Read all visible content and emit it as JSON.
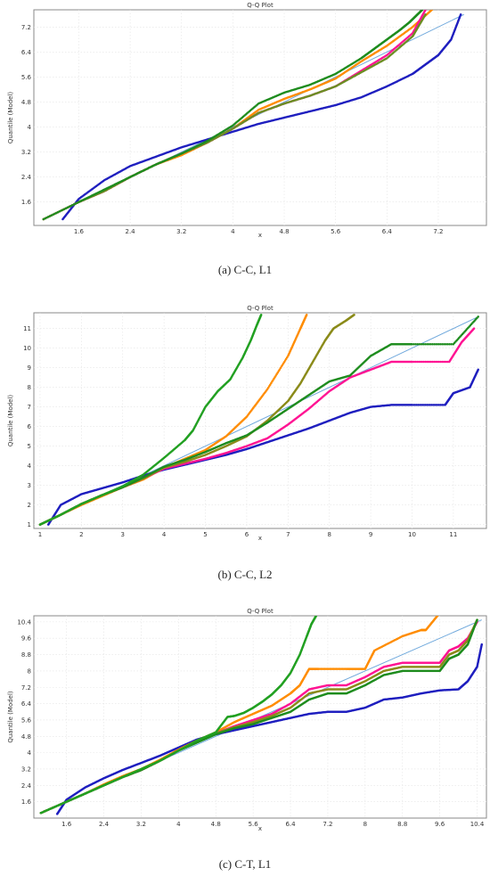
{
  "chart_data": [
    {
      "type": "scatter",
      "title": "Q-Q Plot",
      "xlabel": "x",
      "ylabel": "Quantile (Model)",
      "xlim": [
        0.9,
        7.95
      ],
      "ylim": [
        0.85,
        7.75
      ],
      "xticks": [
        1.6,
        2.4,
        3.2,
        4,
        4.8,
        5.6,
        6.4,
        7.2
      ],
      "xtick_labels": [
        "1.6",
        "2.4",
        "3.2",
        "4",
        "4.8",
        "5.6",
        "6.4",
        "7.2"
      ],
      "yticks": [
        1.6,
        2.4,
        3.2,
        4,
        4.8,
        5.6,
        6.4,
        7.2
      ],
      "ytick_labels": [
        "1.6",
        "2.4",
        "3.2",
        "4",
        "4.8",
        "5.6",
        "6.4",
        "7.2"
      ],
      "grid": true,
      "caption": "(a) C-C, L1",
      "reference_line": {
        "color": "#6fa8dc",
        "x": [
          1.05,
          7.6
        ],
        "y": [
          1.05,
          7.6
        ]
      },
      "series": [
        {
          "color": "#1f1fbf",
          "x": [
            1.35,
            1.6,
            2.0,
            2.4,
            2.8,
            3.2,
            3.6,
            4.0,
            4.4,
            4.8,
            5.2,
            5.6,
            6.0,
            6.4,
            6.8,
            7.0,
            7.2,
            7.4,
            7.55
          ],
          "y": [
            1.05,
            1.7,
            2.3,
            2.75,
            3.05,
            3.35,
            3.6,
            3.85,
            4.1,
            4.3,
            4.5,
            4.7,
            4.95,
            5.3,
            5.7,
            6.0,
            6.3,
            6.8,
            7.6
          ]
        },
        {
          "color": "#ff8c00",
          "x": [
            1.05,
            1.6,
            2.0,
            2.4,
            2.8,
            3.2,
            3.6,
            4.0,
            4.4,
            4.8,
            5.2,
            5.6,
            6.0,
            6.4,
            6.8,
            7.1
          ],
          "y": [
            1.05,
            1.6,
            1.95,
            2.4,
            2.8,
            3.1,
            3.5,
            3.95,
            4.55,
            4.9,
            5.2,
            5.55,
            6.1,
            6.6,
            7.2,
            7.75
          ]
        },
        {
          "color": "#ff1493",
          "x": [
            1.05,
            1.6,
            2.0,
            2.4,
            2.8,
            3.2,
            3.6,
            4.0,
            4.4,
            4.8,
            5.2,
            5.6,
            6.0,
            6.4,
            6.8,
            7.0
          ],
          "y": [
            1.05,
            1.6,
            1.95,
            2.4,
            2.8,
            3.15,
            3.5,
            3.95,
            4.45,
            4.75,
            5.0,
            5.3,
            5.8,
            6.3,
            7.0,
            7.75
          ]
        },
        {
          "color": "#6b8e23",
          "x": [
            1.05,
            1.6,
            2.0,
            2.4,
            2.8,
            3.2,
            3.6,
            4.0,
            4.4,
            4.8,
            5.2,
            5.6,
            6.0,
            6.4,
            6.8,
            7.0
          ],
          "y": [
            1.05,
            1.6,
            1.95,
            2.4,
            2.8,
            3.15,
            3.5,
            3.95,
            4.45,
            4.75,
            5.0,
            5.3,
            5.75,
            6.2,
            6.9,
            7.6
          ]
        },
        {
          "color": "#1e8c1e",
          "x": [
            1.05,
            1.6,
            2.0,
            2.4,
            2.8,
            3.2,
            3.6,
            4.0,
            4.4,
            4.8,
            5.2,
            5.6,
            6.0,
            6.2,
            6.4,
            6.6,
            6.75,
            6.85,
            6.95
          ],
          "y": [
            1.05,
            1.6,
            2.0,
            2.4,
            2.8,
            3.15,
            3.55,
            4.05,
            4.75,
            5.1,
            5.35,
            5.7,
            6.2,
            6.5,
            6.8,
            7.1,
            7.35,
            7.55,
            7.75
          ]
        }
      ]
    },
    {
      "type": "scatter",
      "title": "Q-Q Plot",
      "xlabel": "x",
      "ylabel": "Quantile (Model)",
      "xlim": [
        0.85,
        11.8
      ],
      "ylim": [
        0.8,
        11.8
      ],
      "xticks": [
        1,
        2,
        3,
        4,
        5,
        6,
        7,
        8,
        9,
        10,
        11
      ],
      "xtick_labels": [
        "1",
        "2",
        "3",
        "4",
        "5",
        "6",
        "7",
        "8",
        "9",
        "10",
        "11"
      ],
      "yticks": [
        1,
        2,
        3,
        4,
        5,
        6,
        7,
        8,
        9,
        10,
        11
      ],
      "ytick_labels": [
        "1",
        "2",
        "3",
        "4",
        "5",
        "6",
        "7",
        "8",
        "9",
        "10",
        "11"
      ],
      "grid": true,
      "caption": "(b) C-C, L2",
      "reference_line": {
        "color": "#6fa8dc",
        "x": [
          1.0,
          11.6
        ],
        "y": [
          1.0,
          11.6
        ]
      },
      "series": [
        {
          "color": "#1f1fbf",
          "x": [
            1.2,
            1.5,
            2.0,
            2.5,
            3.0,
            3.5,
            4.0,
            4.5,
            5.0,
            5.5,
            6.0,
            6.5,
            7.0,
            7.5,
            8.0,
            8.5,
            9.0,
            9.5,
            10.0,
            10.8,
            11.0,
            11.4,
            11.6
          ],
          "y": [
            1.0,
            2.0,
            2.55,
            2.85,
            3.15,
            3.5,
            3.8,
            4.05,
            4.3,
            4.55,
            4.85,
            5.2,
            5.55,
            5.9,
            6.3,
            6.7,
            7.0,
            7.1,
            7.1,
            7.1,
            7.7,
            8.0,
            8.9
          ]
        },
        {
          "color": "#ff8c00",
          "x": [
            1.0,
            1.5,
            2.0,
            2.5,
            3.0,
            3.5,
            4.0,
            4.5,
            5.0,
            5.5,
            6.0,
            6.5,
            7.0,
            7.3,
            7.45
          ],
          "y": [
            1.0,
            1.5,
            2.0,
            2.45,
            2.9,
            3.3,
            3.9,
            4.35,
            4.8,
            5.5,
            6.5,
            7.9,
            9.6,
            11.0,
            11.7
          ]
        },
        {
          "color": "#ff1493",
          "x": [
            1.0,
            1.5,
            2.0,
            2.5,
            3.0,
            3.5,
            4.0,
            4.5,
            5.0,
            5.5,
            6.0,
            6.5,
            7.0,
            7.5,
            8.0,
            8.5,
            9.0,
            9.5,
            10.0,
            10.9,
            11.2,
            11.5
          ],
          "y": [
            1.0,
            1.5,
            2.05,
            2.5,
            2.9,
            3.35,
            3.85,
            4.1,
            4.35,
            4.65,
            5.0,
            5.4,
            6.1,
            6.9,
            7.8,
            8.5,
            8.9,
            9.3,
            9.3,
            9.3,
            10.3,
            11.0
          ]
        },
        {
          "color": "#8b8b1a",
          "x": [
            1.0,
            1.5,
            2.0,
            2.5,
            3.0,
            3.5,
            4.0,
            4.5,
            5.0,
            5.5,
            6.0,
            6.5,
            7.0,
            7.3,
            7.6,
            7.9,
            8.1,
            8.4,
            8.6
          ],
          "y": [
            1.0,
            1.5,
            2.05,
            2.5,
            2.9,
            3.35,
            3.9,
            4.2,
            4.55,
            5.0,
            5.5,
            6.3,
            7.3,
            8.2,
            9.3,
            10.4,
            11.0,
            11.4,
            11.7
          ]
        },
        {
          "color": "#1e8c1e",
          "x": [
            1.0,
            1.5,
            2.0,
            2.5,
            3.0,
            3.5,
            4.0,
            4.5,
            5.0,
            5.5,
            6.0,
            6.5,
            7.0,
            7.5,
            8.0,
            8.5,
            9.0,
            9.5,
            10.0,
            11.0,
            11.6
          ],
          "y": [
            1.0,
            1.5,
            2.05,
            2.5,
            2.9,
            3.4,
            3.95,
            4.3,
            4.7,
            5.15,
            5.55,
            6.2,
            6.9,
            7.6,
            8.3,
            8.6,
            9.6,
            10.2,
            10.2,
            10.2,
            11.6
          ]
        },
        {
          "color": "#22a022",
          "x": [
            1.0,
            1.5,
            2.0,
            2.5,
            3.0,
            3.5,
            4.0,
            4.5,
            4.7,
            5.0,
            5.3,
            5.6,
            5.9,
            6.1,
            6.25,
            6.35
          ],
          "y": [
            1.0,
            1.5,
            2.05,
            2.5,
            2.95,
            3.55,
            4.4,
            5.3,
            5.8,
            7.0,
            7.8,
            8.4,
            9.5,
            10.4,
            11.2,
            11.7
          ]
        }
      ]
    },
    {
      "type": "scatter",
      "title": "Q-Q Plot",
      "xlabel": "x",
      "ylabel": "Quantile (Model)",
      "xlim": [
        0.9,
        10.6
      ],
      "ylim": [
        0.8,
        10.7
      ],
      "xticks": [
        1.6,
        2.4,
        3.2,
        4,
        4.8,
        5.6,
        6.4,
        7.2,
        8,
        8.8,
        9.6,
        10.4
      ],
      "xtick_labels": [
        "1.6",
        "2.4",
        "3.2",
        "4",
        "4.8",
        "5.6",
        "6.4",
        "7.2",
        "8",
        "8.8",
        "9.6",
        "10.4"
      ],
      "yticks": [
        1.6,
        2.4,
        3.2,
        4,
        4.8,
        5.6,
        6.4,
        7.2,
        8,
        8.8,
        9.6,
        10.4
      ],
      "ytick_labels": [
        "1.6",
        "2.4",
        "3.2",
        "4",
        "4.8",
        "5.6",
        "6.4",
        "7.2",
        "8",
        "8.8",
        "9.6",
        "10.4"
      ],
      "grid": true,
      "caption": "(c) C-T, L1",
      "reference_line": {
        "color": "#6fa8dc",
        "x": [
          1.05,
          10.5
        ],
        "y": [
          1.05,
          10.5
        ]
      },
      "series": [
        {
          "color": "#1f1fbf",
          "x": [
            1.4,
            1.6,
            2.0,
            2.4,
            2.8,
            3.2,
            3.6,
            4.0,
            4.4,
            4.8,
            5.2,
            5.6,
            6.0,
            6.4,
            6.8,
            7.2,
            7.6,
            8.0,
            8.4,
            8.8,
            9.2,
            9.6,
            10.0,
            10.2,
            10.4,
            10.5
          ],
          "y": [
            1.0,
            1.7,
            2.3,
            2.75,
            3.15,
            3.5,
            3.85,
            4.25,
            4.65,
            4.9,
            5.1,
            5.3,
            5.5,
            5.7,
            5.9,
            6.0,
            6.0,
            6.2,
            6.6,
            6.7,
            6.9,
            7.05,
            7.1,
            7.5,
            8.2,
            9.3
          ]
        },
        {
          "color": "#ff8c00",
          "x": [
            1.05,
            1.6,
            2.0,
            2.4,
            2.8,
            3.2,
            3.6,
            4.0,
            4.4,
            4.8,
            5.2,
            5.6,
            6.0,
            6.4,
            6.6,
            6.8,
            7.0,
            7.6,
            8.0,
            8.2,
            8.8,
            9.2,
            9.3,
            9.55
          ],
          "y": [
            1.05,
            1.6,
            2.0,
            2.45,
            2.85,
            3.2,
            3.65,
            4.15,
            4.6,
            5.0,
            5.5,
            5.9,
            6.3,
            6.9,
            7.3,
            8.1,
            8.1,
            8.1,
            8.1,
            9.0,
            9.7,
            10.0,
            10.0,
            10.7
          ]
        },
        {
          "color": "#ff1493",
          "x": [
            1.05,
            1.6,
            2.0,
            2.4,
            2.8,
            3.2,
            3.6,
            4.0,
            4.4,
            4.8,
            5.2,
            5.6,
            6.0,
            6.4,
            6.8,
            7.2,
            7.6,
            8.0,
            8.4,
            8.8,
            9.2,
            9.6,
            9.8,
            10.0,
            10.2,
            10.4
          ],
          "y": [
            1.05,
            1.6,
            2.0,
            2.4,
            2.8,
            3.15,
            3.6,
            4.1,
            4.55,
            4.95,
            5.3,
            5.6,
            5.9,
            6.4,
            7.1,
            7.3,
            7.3,
            7.7,
            8.2,
            8.4,
            8.4,
            8.4,
            9.0,
            9.2,
            9.6,
            10.4
          ]
        },
        {
          "color": "#8b8b1a",
          "x": [
            1.05,
            1.6,
            2.0,
            2.4,
            2.8,
            3.2,
            3.6,
            4.0,
            4.4,
            4.8,
            5.2,
            5.6,
            6.0,
            6.4,
            6.8,
            7.2,
            7.6,
            8.0,
            8.4,
            8.8,
            9.2,
            9.6,
            9.8,
            10.0,
            10.2,
            10.4
          ],
          "y": [
            1.05,
            1.6,
            2.0,
            2.4,
            2.8,
            3.15,
            3.6,
            4.1,
            4.55,
            4.95,
            5.25,
            5.5,
            5.8,
            6.2,
            6.9,
            7.1,
            7.1,
            7.5,
            8.0,
            8.2,
            8.2,
            8.2,
            8.8,
            9.0,
            9.5,
            10.5
          ]
        },
        {
          "color": "#1e8c1e",
          "x": [
            1.05,
            1.6,
            2.0,
            2.4,
            2.8,
            3.2,
            3.6,
            4.0,
            4.4,
            4.8,
            5.2,
            5.6,
            6.0,
            6.4,
            6.8,
            7.2,
            7.6,
            8.0,
            8.4,
            8.8,
            9.2,
            9.6,
            9.8,
            10.0,
            10.2,
            10.4
          ],
          "y": [
            1.05,
            1.6,
            2.0,
            2.4,
            2.8,
            3.15,
            3.6,
            4.1,
            4.5,
            4.9,
            5.2,
            5.4,
            5.7,
            6.0,
            6.6,
            6.9,
            6.9,
            7.3,
            7.8,
            8.0,
            8.0,
            8.0,
            8.6,
            8.8,
            9.3,
            10.5
          ]
        },
        {
          "color": "#22a022",
          "x": [
            1.05,
            1.6,
            2.0,
            2.4,
            2.8,
            3.2,
            3.6,
            4.0,
            4.4,
            4.8,
            5.05,
            5.2,
            5.4,
            5.6,
            5.8,
            6.0,
            6.2,
            6.4,
            6.6,
            6.75,
            6.85,
            6.95
          ],
          "y": [
            1.05,
            1.6,
            2.0,
            2.4,
            2.8,
            3.2,
            3.6,
            4.1,
            4.6,
            5.0,
            5.75,
            5.8,
            5.95,
            6.2,
            6.5,
            6.85,
            7.3,
            7.9,
            8.8,
            9.7,
            10.3,
            10.7
          ]
        }
      ]
    }
  ]
}
